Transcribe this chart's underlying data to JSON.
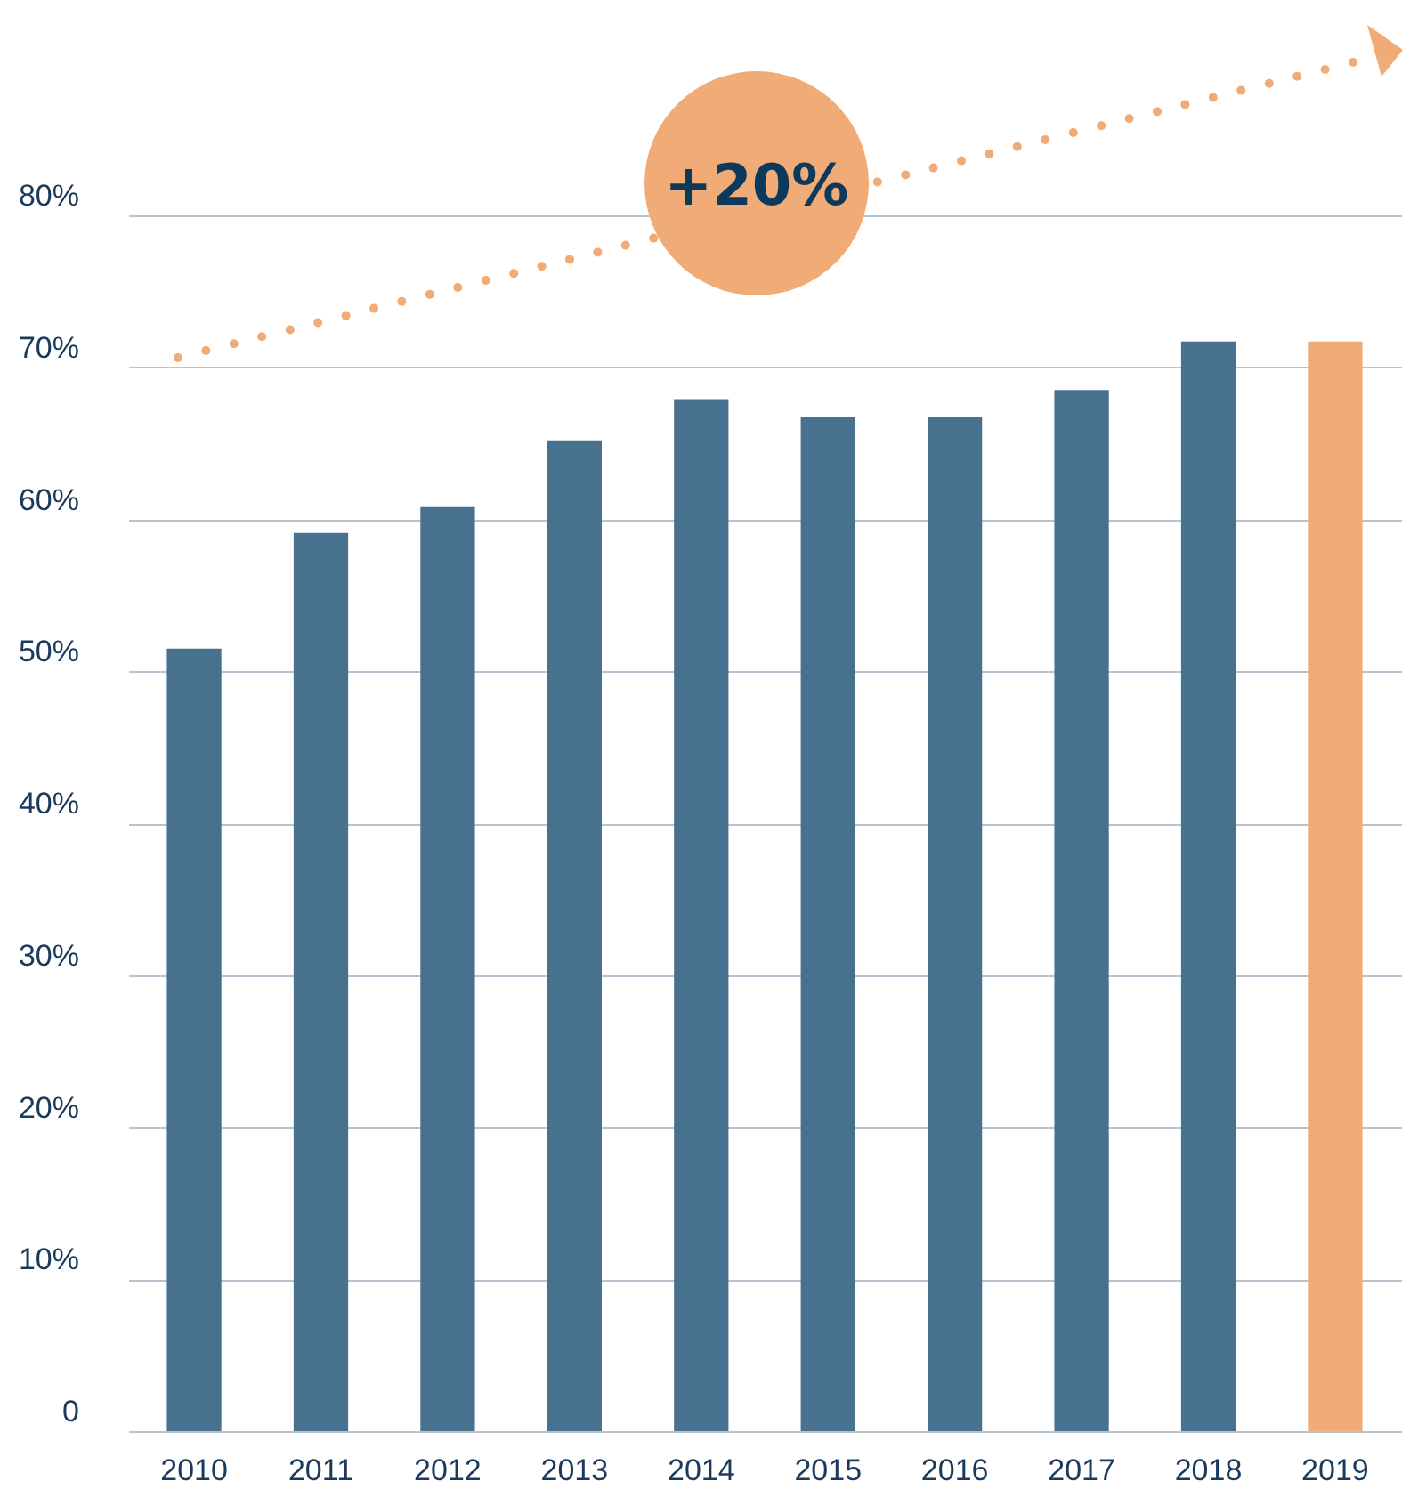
{
  "chart_data": {
    "type": "bar",
    "categories": [
      "2010",
      "2011",
      "2012",
      "2013",
      "2014",
      "2015",
      "2016",
      "2017",
      "2018",
      "2019"
    ],
    "values": [
      51.5,
      59.1,
      60.8,
      65.2,
      67.9,
      66.7,
      66.7,
      68.5,
      71.7,
      71.7
    ],
    "colors": [
      "#48708f",
      "#48708f",
      "#48708f",
      "#48708f",
      "#48708f",
      "#48708f",
      "#48708f",
      "#48708f",
      "#48708f",
      "#f0ab76"
    ],
    "ylim": [
      0,
      80
    ],
    "yticks": [
      0,
      {
        "value": 10,
        "label": "10%"
      },
      {
        "value": 20,
        "label": "20%"
      },
      {
        "value": 30,
        "label": "30%"
      },
      {
        "value": 40,
        "label": "40%"
      },
      {
        "value": 50,
        "label": "50%"
      },
      {
        "value": 60,
        "label": "60%"
      },
      {
        "value": 70,
        "label": "70%"
      },
      {
        "value": 80,
        "label": "80%"
      }
    ],
    "annotations": [
      "+20%"
    ],
    "grid": "y"
  }
}
